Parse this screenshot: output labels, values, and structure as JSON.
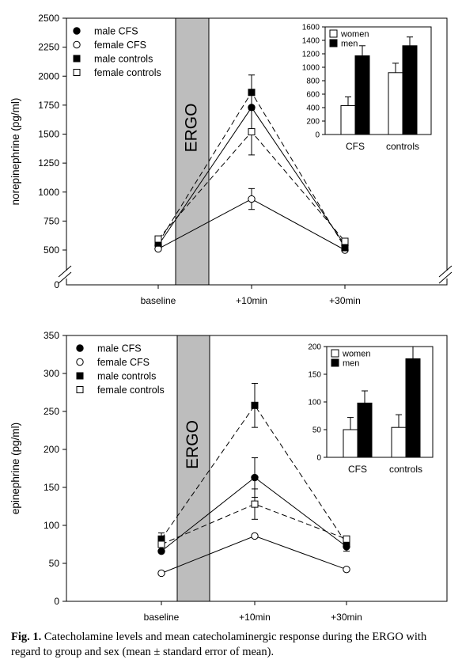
{
  "figure_caption": {
    "label": "Fig. 1.",
    "text": "Catecholamine levels and mean catecholaminergic response during the ERGO with regard to group and sex (mean ± standard error of mean)."
  },
  "chart_data": [
    {
      "type": "line",
      "ylabel": "norepinephrine (pg/ml)",
      "xlabel": "",
      "categories": [
        "baseline",
        "+10min",
        "+30min"
      ],
      "yticks": [
        500,
        750,
        1000,
        1250,
        1500,
        1750,
        2000,
        2250,
        2500
      ],
      "ylim": [
        450,
        2500
      ],
      "axis_break": true,
      "break_label": "0",
      "shaded_band": {
        "label": "ERGO",
        "between": [
          "baseline",
          "+10min"
        ]
      },
      "legend": {
        "position": "top-left"
      },
      "series": [
        {
          "name": "male CFS",
          "marker": "filled-circle",
          "line": "solid",
          "values": [
            540,
            1730,
            540
          ],
          "errors": [
            null,
            null,
            null
          ]
        },
        {
          "name": "female CFS",
          "marker": "open-circle",
          "line": "solid",
          "values": [
            510,
            940,
            380
          ],
          "errors": [
            null,
            90,
            null
          ]
        },
        {
          "name": "male controls",
          "marker": "filled-square",
          "line": "dashed",
          "values": [
            560,
            1860,
            520
          ],
          "errors": [
            null,
            150,
            null
          ]
        },
        {
          "name": "female controls",
          "marker": "open-square",
          "line": "dashed",
          "values": [
            595,
            1520,
            575
          ],
          "errors": [
            null,
            200,
            null
          ]
        }
      ],
      "inset": {
        "type": "bar",
        "categories": [
          "CFS",
          "controls"
        ],
        "yticks": [
          0,
          200,
          400,
          600,
          800,
          1000,
          1200,
          1400,
          1600
        ],
        "ylim": [
          0,
          1600
        ],
        "legend": {
          "position": "top-left"
        },
        "series": [
          {
            "name": "women",
            "color": "#ffffff",
            "values": [
              430,
              920
            ],
            "errors": [
              130,
              140
            ]
          },
          {
            "name": "men",
            "color": "#000000",
            "values": [
              1170,
              1320
            ],
            "errors": [
              150,
              130
            ]
          }
        ]
      }
    },
    {
      "type": "line",
      "ylabel": "epinephrine (pg/ml)",
      "xlabel": "",
      "categories": [
        "baseline",
        "+10min",
        "+30min"
      ],
      "yticks": [
        0,
        50,
        100,
        150,
        200,
        250,
        300,
        350
      ],
      "ylim": [
        0,
        350
      ],
      "shaded_band": {
        "label": "ERGO",
        "between": [
          "baseline",
          "+10min"
        ]
      },
      "legend": {
        "position": "top-left"
      },
      "series": [
        {
          "name": "male CFS",
          "marker": "filled-circle",
          "line": "solid",
          "values": [
            66,
            163,
            72
          ],
          "errors": [
            null,
            26,
            null
          ]
        },
        {
          "name": "female CFS",
          "marker": "open-circle",
          "line": "solid",
          "values": [
            37,
            86,
            42
          ],
          "errors": [
            null,
            null,
            null
          ]
        },
        {
          "name": "male controls",
          "marker": "filled-square",
          "line": "dashed",
          "values": [
            82,
            258,
            76
          ],
          "errors": [
            8,
            29,
            10
          ]
        },
        {
          "name": "female controls",
          "marker": "open-square",
          "line": "dashed",
          "values": [
            75,
            128,
            82
          ],
          "errors": [
            null,
            20,
            null
          ]
        }
      ],
      "inset": {
        "type": "bar",
        "categories": [
          "CFS",
          "controls"
        ],
        "yticks": [
          0,
          50,
          100,
          150,
          200
        ],
        "ylim": [
          0,
          200
        ],
        "legend": {
          "position": "top-left"
        },
        "series": [
          {
            "name": "women",
            "color": "#ffffff",
            "values": [
              50,
              54
            ],
            "errors": [
              22,
              23
            ]
          },
          {
            "name": "men",
            "color": "#000000",
            "values": [
              98,
              178
            ],
            "errors": [
              22,
              22
            ]
          }
        ]
      }
    }
  ]
}
